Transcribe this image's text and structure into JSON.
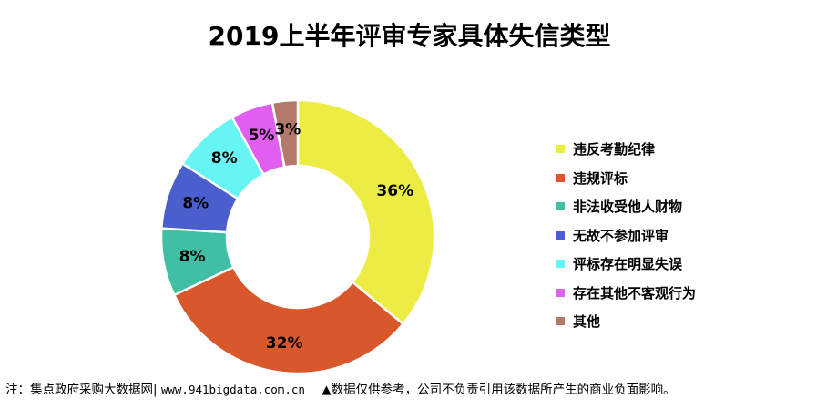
{
  "chart_data": {
    "type": "pie",
    "variant": "donut",
    "title": "2019上半年评审专家具体失信类型",
    "categories": [
      "违反考勤纪律",
      "违规评标",
      "非法收受他人财物",
      "无故不参加评审",
      "评标存在明显失误",
      "存在其他不客观行为",
      "其他"
    ],
    "values": [
      36,
      32,
      8,
      8,
      8,
      5,
      3
    ],
    "value_labels": [
      "36%",
      "32%",
      "8%",
      "8%",
      "8%",
      "5%",
      "3%"
    ],
    "colors": [
      "#ecec45",
      "#d9582b",
      "#40bfa4",
      "#4a5fcd",
      "#67f4f4",
      "#e05ff0",
      "#b37a6b"
    ],
    "legend_position": "right"
  },
  "footer": {
    "source": "注：集点政府采购大数据网|",
    "url": "www.941bigdata.com.cn",
    "disclaimer": "▲数据仅供参考，公司不负责引用该数据所产生的商业负面影响。"
  }
}
